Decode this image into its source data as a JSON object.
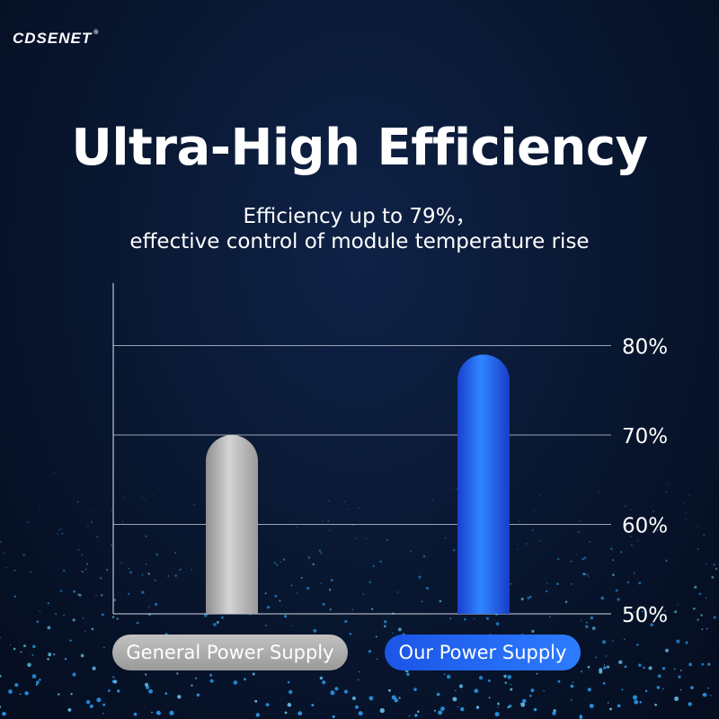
{
  "brand": {
    "name": "CDSENET",
    "registered": "®"
  },
  "title": "Ultra-High Efficiency",
  "subtitle_lines": [
    "Efficiency up to 79%，",
    "effective control of module temperature rise"
  ],
  "colors": {
    "background": "#07142b",
    "general_bar": "#a9a9a9",
    "our_bar": "#1e63f0",
    "grid": "#ffffff"
  },
  "chart_data": {
    "type": "bar",
    "categories": [
      "General Power Supply",
      "Our Power Supply"
    ],
    "values": [
      70,
      79
    ],
    "ylim": [
      50,
      87
    ],
    "yticks": [
      50,
      60,
      70,
      80
    ],
    "ytick_labels": [
      "50%",
      "60%",
      "70%",
      "80%"
    ],
    "grid": true,
    "axis_side": "right",
    "title": "",
    "xlabel": "",
    "ylabel": ""
  }
}
